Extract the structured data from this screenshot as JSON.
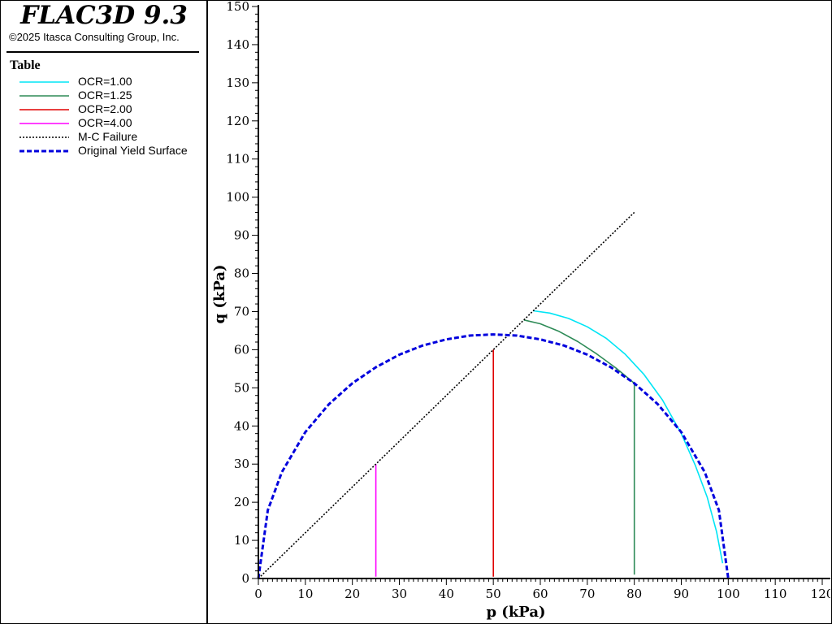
{
  "app": {
    "title": "FLAC3D 9.3",
    "copyright": "©2025 Itasca Consulting Group, Inc."
  },
  "legend": {
    "heading": "Table",
    "items": [
      {
        "label": "OCR=1.00",
        "color": "#00e5f5",
        "style": "solid"
      },
      {
        "label": "OCR=1.25",
        "color": "#2e8b57",
        "style": "solid"
      },
      {
        "label": "OCR=2.00",
        "color": "#e00000",
        "style": "solid"
      },
      {
        "label": "OCR=4.00",
        "color": "#ff00ff",
        "style": "solid"
      },
      {
        "label": "M-C Failure",
        "color": "#000000",
        "style": "dotted"
      },
      {
        "label": "Original Yield Surface",
        "color": "#0000dd",
        "style": "dashed"
      }
    ]
  },
  "chart_data": {
    "type": "line",
    "xlabel": "p (kPa)",
    "ylabel": "q (kPa)",
    "xlim": [
      0,
      120
    ],
    "ylim": [
      0,
      150
    ],
    "xticks": [
      0,
      10,
      20,
      30,
      40,
      50,
      60,
      70,
      80,
      90,
      100,
      110,
      120
    ],
    "yticks": [
      0,
      10,
      20,
      30,
      40,
      50,
      60,
      70,
      80,
      90,
      100,
      110,
      120,
      130,
      140,
      150
    ],
    "grid": false,
    "series": [
      {
        "name": "OCR=1.00",
        "color": "#00e5f5",
        "style": "solid",
        "x": [
          58.5,
          62,
          66,
          70,
          74,
          78,
          82,
          86,
          90,
          93,
          95.5,
          97.5,
          98.8
        ],
        "y": [
          70.2,
          69.6,
          68.2,
          66.0,
          63.0,
          58.9,
          53.6,
          46.8,
          38.0,
          29.6,
          21.4,
          12.3,
          4.0
        ]
      },
      {
        "name": "OCR=1.25",
        "color": "#2e8b57",
        "style": "solid",
        "x": [
          56.5,
          60,
          64,
          68,
          72,
          76,
          80,
          80,
          80
        ],
        "y": [
          67.8,
          66.8,
          64.8,
          62.1,
          58.9,
          55.3,
          51.2,
          25,
          1
        ]
      },
      {
        "name": "OCR=2.00",
        "color": "#e00000",
        "style": "solid",
        "x": [
          50,
          50
        ],
        "y": [
          0.5,
          60
        ]
      },
      {
        "name": "OCR=4.00",
        "color": "#ff00ff",
        "style": "solid",
        "x": [
          25,
          25
        ],
        "y": [
          0.5,
          30
        ]
      },
      {
        "name": "M-C Failure",
        "color": "#000000",
        "style": "dotted",
        "x": [
          0,
          80
        ],
        "y": [
          0,
          96
        ]
      },
      {
        "name": "Original Yield Surface",
        "color": "#0000dd",
        "style": "dashed",
        "x": [
          0,
          2,
          5,
          10,
          15,
          20,
          25,
          30,
          35,
          40,
          45,
          50,
          55,
          60,
          65,
          70,
          75,
          80,
          85,
          90,
          95,
          98,
          100
        ],
        "y": [
          0,
          17.9,
          27.9,
          38.4,
          45.7,
          51.2,
          55.4,
          58.7,
          61.1,
          62.7,
          63.7,
          64.0,
          63.7,
          62.7,
          61.1,
          58.7,
          55.4,
          51.2,
          45.7,
          38.4,
          27.9,
          17.9,
          0
        ]
      }
    ]
  }
}
